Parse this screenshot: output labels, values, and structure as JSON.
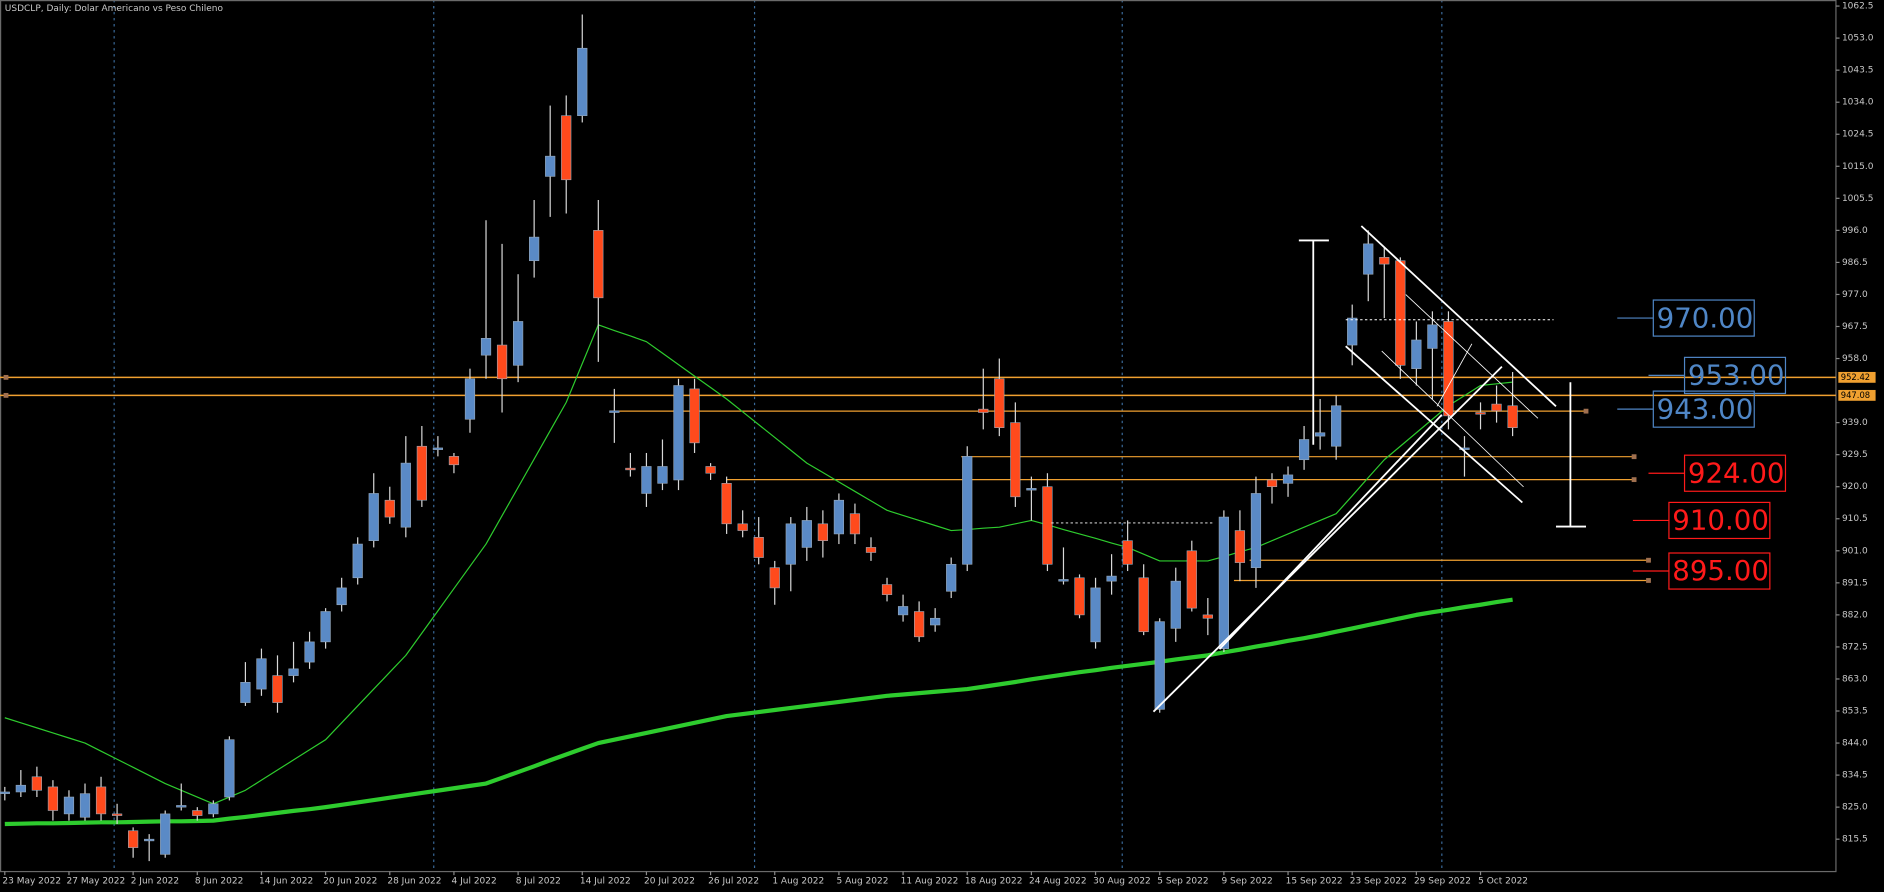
{
  "chart_data": {
    "type": "candlestick",
    "title": "USDCLP, Daily:  Dolar Americano vs Peso Chileno",
    "categories": [
      "23 May 2022",
      null,
      null,
      null,
      "27 May 2022",
      null,
      null,
      null,
      "2 Jun 2022",
      null,
      null,
      null,
      "8 Jun 2022",
      null,
      null,
      null,
      "14 Jun 2022",
      null,
      null,
      null,
      "20 Jun 2022",
      null,
      null,
      null,
      "28 Jun 2022",
      null,
      null,
      null,
      "4 Jul 2022",
      null,
      null,
      null,
      "8 Jul 2022",
      null,
      null,
      null,
      "14 Jul 2022",
      null,
      null,
      null,
      "20 Jul 2022",
      null,
      null,
      null,
      "26 Jul 2022",
      null,
      null,
      null,
      "1 Aug 2022",
      null,
      null,
      null,
      "5 Aug 2022",
      null,
      null,
      null,
      "11 Aug 2022",
      null,
      null,
      null,
      "18 Aug 2022",
      null,
      null,
      null,
      "24 Aug 2022",
      null,
      null,
      null,
      "30 Aug 2022",
      null,
      null,
      null,
      "5 Sep 2022",
      null,
      null,
      null,
      "9 Sep 2022",
      null,
      null,
      null,
      "15 Sep 2022",
      null,
      null,
      null,
      "23 Sep 2022",
      null,
      null,
      null,
      "29 Sep 2022",
      null,
      null,
      null,
      "5 Oct 2022",
      null,
      null
    ],
    "open": [
      829,
      829.5,
      834,
      831,
      823,
      822,
      831,
      823,
      818,
      815,
      811,
      825,
      824,
      823,
      828,
      856,
      860,
      864,
      864,
      868,
      874,
      885,
      893,
      904,
      916,
      908,
      932,
      931,
      929,
      940,
      959,
      962,
      956,
      987,
      1012,
      1030,
      1030,
      996,
      942,
      925.5,
      918,
      921,
      922,
      949,
      926,
      921,
      909,
      905,
      896,
      897,
      902,
      909,
      906,
      912,
      902,
      891,
      882,
      883,
      879,
      889,
      897,
      943,
      952,
      939,
      919,
      920,
      892,
      893,
      874,
      892,
      904,
      893,
      854,
      878,
      901,
      882,
      872,
      907,
      896,
      922,
      921,
      928,
      935,
      932,
      962,
      983,
      988,
      987,
      955,
      961,
      969,
      931,
      942,
      944.5,
      944
    ],
    "high": [
      831,
      836,
      837,
      833,
      830,
      832,
      834,
      826,
      819,
      817,
      824,
      832,
      825,
      827,
      846,
      868,
      872,
      870,
      874,
      877,
      884,
      893,
      905,
      924,
      920,
      935,
      938,
      935,
      930,
      955,
      999,
      992,
      983,
      1005,
      1033,
      1036,
      1060,
      1005,
      949,
      930,
      930,
      934,
      952,
      952,
      927,
      923,
      913,
      911,
      898,
      911,
      914,
      913,
      918,
      915,
      905,
      893,
      888,
      886,
      884,
      899,
      932,
      955,
      958,
      945,
      923,
      924,
      902,
      894,
      893,
      900,
      910,
      897,
      881,
      896,
      904,
      887,
      913,
      913,
      923,
      924,
      926,
      938,
      946,
      947,
      974,
      996,
      991,
      988,
      969,
      972,
      972,
      935,
      945,
      950,
      954
    ],
    "low": [
      827,
      828,
      828,
      821,
      821,
      821,
      821,
      820,
      810,
      809,
      810,
      824,
      821,
      822,
      827,
      855,
      858,
      853,
      862,
      866,
      872,
      883,
      891,
      902,
      909,
      905,
      914,
      929,
      924,
      936,
      952,
      942,
      951,
      982,
      1000,
      1001,
      1028,
      957,
      933,
      923,
      914,
      919,
      919,
      930,
      922,
      906,
      905,
      897,
      885,
      889,
      898,
      899,
      903,
      903,
      898,
      886,
      880,
      874,
      877,
      887,
      895,
      937,
      935,
      914,
      910,
      895,
      891,
      881,
      872,
      888,
      895,
      876,
      853,
      874,
      883,
      876,
      871,
      892,
      890,
      915,
      917,
      925,
      931,
      928,
      956,
      975,
      970,
      952,
      950,
      946,
      937,
      923,
      937,
      939,
      935
    ],
    "close": [
      829.5,
      831.5,
      830,
      824,
      828,
      829,
      823,
      822.5,
      813,
      815.5,
      823,
      825.5,
      822.5,
      826,
      845,
      862,
      869,
      856,
      866,
      874,
      883,
      890,
      903,
      918,
      911,
      927,
      916,
      931.5,
      926.5,
      952,
      964,
      952,
      969,
      994,
      1018,
      1011,
      1050,
      976,
      942.5,
      925,
      926,
      926,
      950,
      933,
      924,
      909,
      907,
      899,
      890,
      909,
      910,
      904,
      916,
      906,
      900.5,
      888,
      884.5,
      875.5,
      881,
      897,
      929,
      942,
      937.5,
      917,
      919.5,
      897,
      892.5,
      882,
      890,
      893.5,
      897,
      877,
      880,
      892,
      884,
      881,
      911,
      897.5,
      918,
      920,
      923.5,
      934,
      936,
      944,
      970,
      992,
      986,
      956,
      963.5,
      968,
      941,
      931.5,
      941.5,
      942.5,
      937.5
    ],
    "up_color": "#5a8ac6",
    "down_color": "#ff4a1c",
    "moving_averages": [
      {
        "color": "#2ecc2e",
        "width": 1,
        "values": [
          851.5,
          850,
          848.5,
          847,
          845.5,
          844,
          841.6,
          839.2,
          836.8,
          834.4,
          832,
          830,
          828,
          826,
          828,
          830,
          833,
          836,
          839,
          842,
          845,
          850,
          855,
          860,
          865,
          870,
          876.6,
          883.2,
          889.8,
          896.4,
          903,
          911.4,
          919.8,
          928.2,
          936.6,
          945,
          956.5,
          968,
          966.3,
          964.7,
          963,
          959.6,
          956.2,
          952.8,
          949.4,
          946,
          942.2,
          938.4,
          934.6,
          930.8,
          927,
          924.2,
          921.4,
          918.6,
          915.8,
          913,
          911.5,
          910,
          908.5,
          907,
          907.3,
          907.7,
          908,
          909,
          910,
          908.7,
          907.3,
          906,
          904.7,
          903.3,
          902,
          900,
          898,
          898,
          898,
          898,
          899.3,
          900.7,
          902,
          904,
          906,
          908,
          910,
          912,
          917.3,
          922.7,
          928,
          932,
          936,
          940,
          944,
          947,
          950,
          950.5,
          951
        ]
      },
      {
        "color": "#2ecc2e",
        "width": 3.5,
        "values": [
          820,
          820.1,
          820.2,
          820.2,
          820.3,
          820.4,
          820.5,
          820.5,
          820.6,
          820.7,
          820.8,
          820.8,
          820.9,
          821,
          821.6,
          822.1,
          822.7,
          823.3,
          823.9,
          824.4,
          825,
          825.7,
          826.4,
          827.1,
          827.8,
          828.5,
          829.2,
          829.9,
          830.6,
          831.3,
          832,
          833.7,
          835.4,
          837.1,
          838.9,
          840.6,
          842.3,
          844,
          845,
          846,
          847,
          848,
          849,
          850,
          851,
          852,
          852.6,
          853.2,
          853.8,
          854.4,
          855,
          855.6,
          856.2,
          856.8,
          857.4,
          858,
          858.4,
          858.8,
          859.2,
          859.6,
          860,
          860.7,
          861.4,
          862.1,
          862.9,
          863.6,
          864.3,
          865,
          865.6,
          866.3,
          866.9,
          867.5,
          868.1,
          868.8,
          869.4,
          870,
          870.9,
          871.7,
          872.6,
          873.4,
          874.3,
          875.1,
          876,
          877,
          878,
          879,
          880,
          881,
          882,
          882.8,
          883.5,
          884.3,
          885,
          885.8,
          886.5
        ]
      }
    ],
    "price_tags": [
      {
        "value": 952.42,
        "label": "952.42"
      },
      {
        "value": 947.08,
        "label": "947.08"
      }
    ],
    "hlines": [
      942.4,
      928.9,
      922.1,
      898.2,
      892.2
    ],
    "levels": [
      {
        "value": 970,
        "label": "970.00",
        "color": "#4f86c6"
      },
      {
        "value": 953,
        "label": "953.00",
        "color": "#4f86c6"
      },
      {
        "value": 943,
        "label": "943.00",
        "color": "#4f86c6"
      },
      {
        "value": 924,
        "label": "924.00",
        "color": "#ff1a1a"
      },
      {
        "value": 910,
        "label": "910.00",
        "color": "#ff1a1a"
      },
      {
        "value": 895,
        "label": "895.00",
        "color": "#ff1a1a"
      }
    ],
    "ylim": [
      805.9,
      1064.3
    ],
    "yticks": [
      1062.5,
      {
        "value": 1053,
        "label": "1053.0"
      },
      1043.5,
      {
        "value": 1034,
        "label": "1034.0"
      },
      1024.5,
      {
        "value": 1015,
        "label": "1015.0"
      },
      1005.5,
      {
        "value": 996,
        "label": "996.0"
      },
      986.5,
      {
        "value": 977,
        "label": "977.0"
      },
      967.5,
      {
        "value": 958,
        "label": "958.0"
      },
      {
        "value": 939,
        "label": "939.0"
      },
      929.5,
      {
        "value": 920,
        "label": "920.0"
      },
      910.5,
      {
        "value": 901,
        "label": "901.0"
      },
      891.5,
      {
        "value": 882,
        "label": "882.0"
      },
      872.5,
      {
        "value": 863,
        "label": "863.0"
      },
      853.5,
      {
        "value": 844,
        "label": "844.0"
      },
      834.5,
      {
        "value": 825,
        "label": "825.0"
      },
      815.5
    ]
  }
}
